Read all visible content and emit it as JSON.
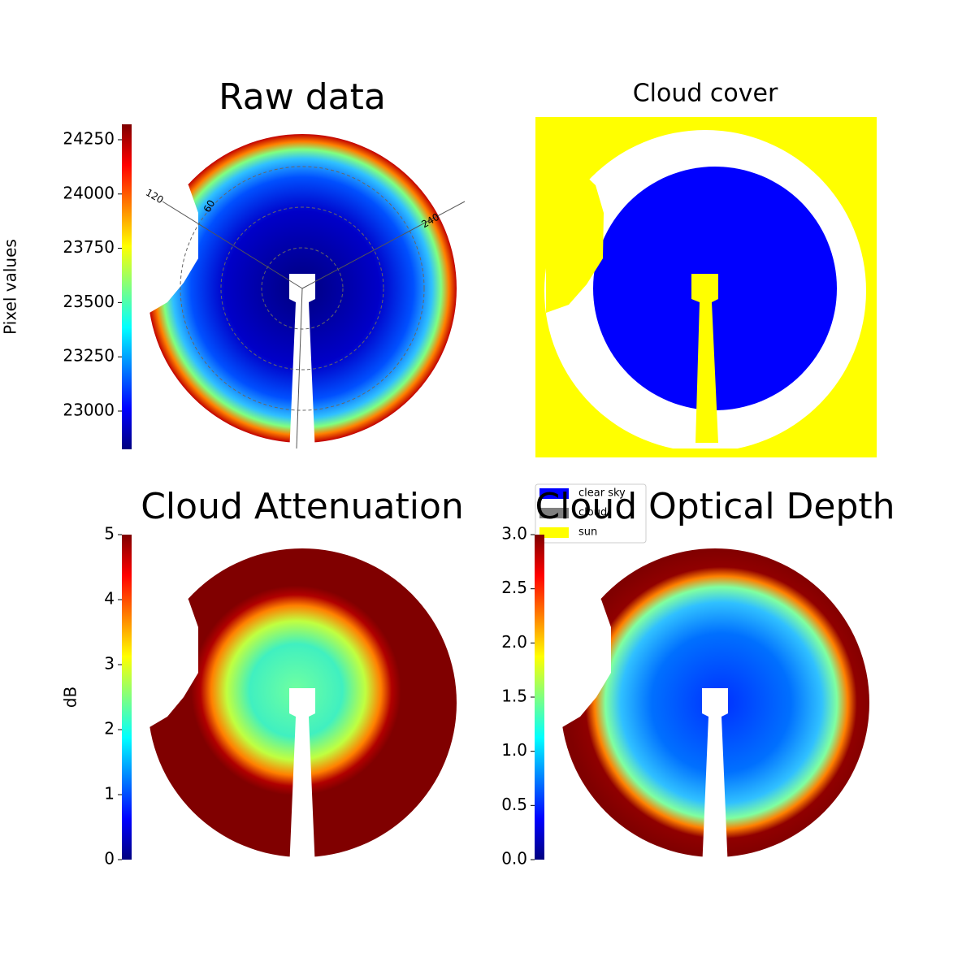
{
  "chart_data": [
    {
      "type": "image",
      "title": "Raw data",
      "colormap": "jet",
      "ylabel": "Pixel values",
      "ylim": [
        22824,
        24321
      ],
      "yticks": [
        23000,
        23250,
        23500,
        23750,
        24000,
        24250
      ],
      "polar_labels": [
        "120",
        "60",
        "240"
      ]
    },
    {
      "type": "categorical_image",
      "title": "Cloud cover",
      "legend": [
        {
          "name": "clear sky",
          "color": "#0000ff"
        },
        {
          "name": "cloud",
          "color": "#808080"
        },
        {
          "name": "sun",
          "color": "#ffff00"
        }
      ]
    },
    {
      "type": "image",
      "title": "Cloud Attenuation",
      "colormap": "jet",
      "ylabel": "dB",
      "ylim": [
        0,
        5
      ],
      "yticks": [
        0,
        1,
        2,
        3,
        4,
        5
      ]
    },
    {
      "type": "image",
      "title": "Cloud Optical Depth",
      "colormap": "jet",
      "ylim": [
        0,
        3
      ],
      "yticks": [
        {
          "value": 0,
          "label": "0.0"
        },
        {
          "value": 0.5,
          "label": "0.5"
        },
        {
          "value": 1,
          "label": "1.0"
        },
        {
          "value": 1.5,
          "label": "1.5"
        },
        {
          "value": 2,
          "label": "2.0"
        },
        {
          "value": 2.5,
          "label": "2.5"
        },
        {
          "value": 3,
          "label": "3.0"
        }
      ]
    }
  ]
}
